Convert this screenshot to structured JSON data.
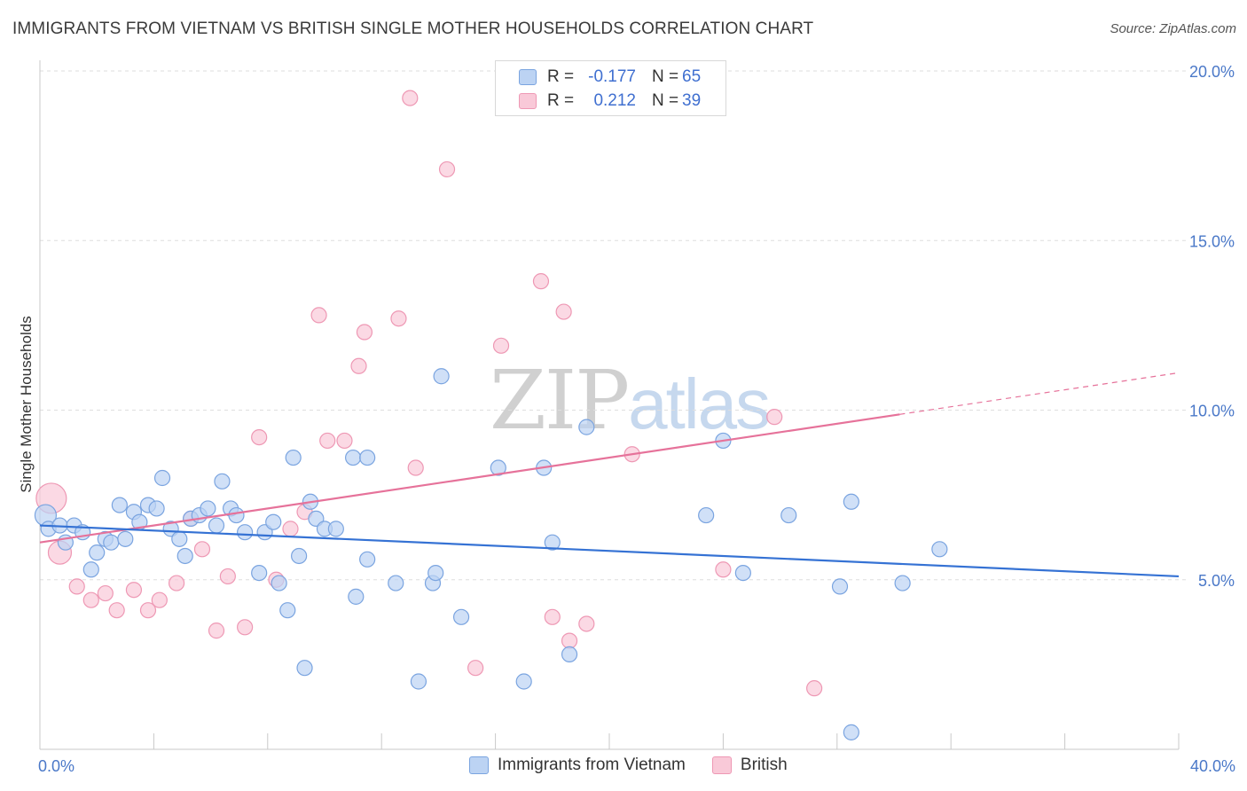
{
  "title": "IMMIGRANTS FROM VIETNAM VS BRITISH SINGLE MOTHER HOUSEHOLDS CORRELATION CHART",
  "source": "Source: ZipAtlas.com",
  "watermark": {
    "part1": "ZIP",
    "part2": "atlas"
  },
  "colors": {
    "blue_fill": "#bcd3f3",
    "blue_stroke": "#7aa4e0",
    "blue_line": "#3572d4",
    "pink_fill": "#f9c9d8",
    "pink_stroke": "#ee98b4",
    "pink_line": "#e6729a",
    "grid": "#dedede",
    "tick_text": "#4a78c8"
  },
  "legend": {
    "rows": [
      {
        "r_label": "R =",
        "r_value": "-0.177",
        "n_label": "N =",
        "n_value": "65"
      },
      {
        "r_label": "R =",
        "r_value": "0.212",
        "n_label": "N =",
        "n_value": "39"
      }
    ]
  },
  "bottom_legend": [
    "Immigrants from Vietnam",
    "British"
  ],
  "chart_data": {
    "type": "scatter",
    "title": "IMMIGRANTS FROM VIETNAM VS BRITISH SINGLE MOTHER HOUSEHOLDS CORRELATION CHART",
    "xlabel": "",
    "ylabel": "Single Mother Households",
    "xlim": [
      0,
      40
    ],
    "ylim": [
      0,
      20
    ],
    "x_tick_labels": [
      "0.0%",
      "40.0%"
    ],
    "y_ticks": [
      5,
      10,
      15,
      20
    ],
    "y_tick_labels": [
      "5.0%",
      "10.0%",
      "15.0%",
      "20.0%"
    ],
    "x_minor_ticks": [
      0,
      4,
      8,
      12,
      16,
      20,
      24,
      28,
      32,
      36,
      40
    ],
    "grid": true,
    "series": [
      {
        "name": "Immigrants from Vietnam",
        "color": "blue",
        "r": -0.177,
        "n": 65,
        "trend": {
          "x0": 0,
          "y0": 6.6,
          "x1": 40,
          "y1": 5.1,
          "dash_from": 40
        },
        "points": [
          [
            0.2,
            6.9
          ],
          [
            0.3,
            6.5
          ],
          [
            0.7,
            6.6
          ],
          [
            0.9,
            6.1
          ],
          [
            1.2,
            6.6
          ],
          [
            1.5,
            6.4
          ],
          [
            1.8,
            5.3
          ],
          [
            2.0,
            5.8
          ],
          [
            2.3,
            6.2
          ],
          [
            2.5,
            6.1
          ],
          [
            2.8,
            7.2
          ],
          [
            3.0,
            6.2
          ],
          [
            3.3,
            7.0
          ],
          [
            3.5,
            6.7
          ],
          [
            3.8,
            7.2
          ],
          [
            4.1,
            7.1
          ],
          [
            4.3,
            8.0
          ],
          [
            4.6,
            6.5
          ],
          [
            4.9,
            6.2
          ],
          [
            5.1,
            5.7
          ],
          [
            5.3,
            6.8
          ],
          [
            5.6,
            6.9
          ],
          [
            5.9,
            7.1
          ],
          [
            6.2,
            6.6
          ],
          [
            6.4,
            7.9
          ],
          [
            6.7,
            7.1
          ],
          [
            6.9,
            6.9
          ],
          [
            7.2,
            6.4
          ],
          [
            7.7,
            5.2
          ],
          [
            7.9,
            6.4
          ],
          [
            8.2,
            6.7
          ],
          [
            8.4,
            4.9
          ],
          [
            8.7,
            4.1
          ],
          [
            8.9,
            8.6
          ],
          [
            9.1,
            5.7
          ],
          [
            9.3,
            2.4
          ],
          [
            9.5,
            7.3
          ],
          [
            9.7,
            6.8
          ],
          [
            10.0,
            6.5
          ],
          [
            10.4,
            6.5
          ],
          [
            11.0,
            8.6
          ],
          [
            11.5,
            8.6
          ],
          [
            11.1,
            4.5
          ],
          [
            11.5,
            5.6
          ],
          [
            12.5,
            4.9
          ],
          [
            13.3,
            2.0
          ],
          [
            13.8,
            4.9
          ],
          [
            13.9,
            5.2
          ],
          [
            14.1,
            11.0
          ],
          [
            14.8,
            3.9
          ],
          [
            16.1,
            8.3
          ],
          [
            17.0,
            2.0
          ],
          [
            17.7,
            8.3
          ],
          [
            18.0,
            6.1
          ],
          [
            18.6,
            2.8
          ],
          [
            19.2,
            9.5
          ],
          [
            23.4,
            6.9
          ],
          [
            24.0,
            9.1
          ],
          [
            24.7,
            5.2
          ],
          [
            26.3,
            6.9
          ],
          [
            28.1,
            4.8
          ],
          [
            28.5,
            7.3
          ],
          [
            28.5,
            0.5
          ],
          [
            30.3,
            4.9
          ],
          [
            31.6,
            5.9
          ]
        ]
      },
      {
        "name": "British",
        "color": "pink",
        "r": 0.212,
        "n": 39,
        "trend": {
          "x0": 0,
          "y0": 6.1,
          "x1": 40,
          "y1": 11.1,
          "dash_from": 30.2
        },
        "points": [
          [
            0.4,
            7.4
          ],
          [
            0.7,
            5.8
          ],
          [
            1.3,
            4.8
          ],
          [
            1.8,
            4.4
          ],
          [
            2.3,
            4.6
          ],
          [
            2.7,
            4.1
          ],
          [
            3.3,
            4.7
          ],
          [
            3.8,
            4.1
          ],
          [
            4.2,
            4.4
          ],
          [
            4.8,
            4.9
          ],
          [
            5.3,
            6.8
          ],
          [
            5.7,
            5.9
          ],
          [
            6.2,
            3.5
          ],
          [
            6.6,
            5.1
          ],
          [
            7.2,
            3.6
          ],
          [
            7.7,
            9.2
          ],
          [
            8.3,
            5.0
          ],
          [
            8.8,
            6.5
          ],
          [
            9.3,
            7.0
          ],
          [
            9.8,
            12.8
          ],
          [
            10.1,
            9.1
          ],
          [
            10.7,
            9.1
          ],
          [
            11.4,
            12.3
          ],
          [
            11.2,
            11.3
          ],
          [
            12.6,
            12.7
          ],
          [
            13.0,
            19.2
          ],
          [
            13.2,
            8.3
          ],
          [
            14.3,
            17.1
          ],
          [
            15.3,
            2.4
          ],
          [
            16.2,
            11.9
          ],
          [
            17.6,
            13.8
          ],
          [
            18.4,
            12.9
          ],
          [
            18.0,
            3.9
          ],
          [
            18.6,
            3.2
          ],
          [
            19.2,
            3.7
          ],
          [
            20.8,
            8.7
          ],
          [
            24.0,
            5.3
          ],
          [
            25.8,
            9.8
          ],
          [
            27.2,
            1.8
          ]
        ]
      }
    ]
  }
}
